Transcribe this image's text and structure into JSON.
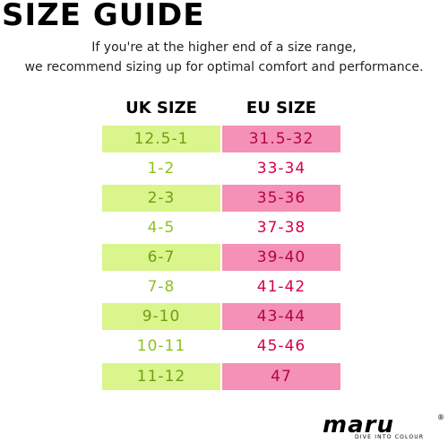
{
  "title": "SIZE GUIDE",
  "subtitle": {
    "line1": "If you're at the higher end of a size range,",
    "line2": "we recommend sizing up for optimal comfort and performance."
  },
  "table": {
    "headers": {
      "uk": "UK SIZE",
      "eu": "EU SIZE"
    },
    "rows": [
      {
        "uk": "12.5-1",
        "eu": "31.5-32",
        "shaded": true
      },
      {
        "uk": "1-2",
        "eu": "33-34",
        "shaded": false
      },
      {
        "uk": "2-3",
        "eu": "35-36",
        "shaded": true
      },
      {
        "uk": "4-5",
        "eu": "37-38",
        "shaded": false
      },
      {
        "uk": "6-7",
        "eu": "39-40",
        "shaded": true
      },
      {
        "uk": "7-8",
        "eu": "41-42",
        "shaded": false
      },
      {
        "uk": "9-10",
        "eu": "43-44",
        "shaded": true
      },
      {
        "uk": "10-11",
        "eu": "45-46",
        "shaded": false
      },
      {
        "uk": "11-12",
        "eu": "47",
        "shaded": true
      }
    ]
  },
  "colors": {
    "uk_fill": "#d9f58c",
    "uk_text": "#8dc21f",
    "eu_fill": "#f590b6",
    "eu_text": "#d6004c"
  },
  "logo": {
    "wordmark": "maru",
    "registered": "®",
    "tagline": "DIVE INTO COLOUR"
  }
}
